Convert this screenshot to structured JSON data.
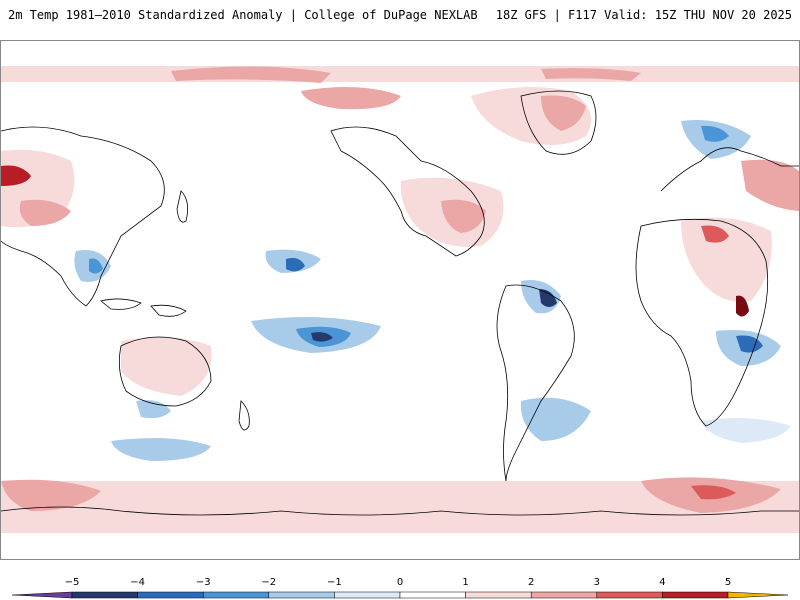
{
  "header": {
    "title_left": "2m Temp 1981–2010 Standardized Anomaly | College of DuPage NEXLAB",
    "title_right": "18Z GFS | F117 Valid: 15Z THU NOV 20 2025"
  },
  "map": {
    "projection": "equirectangular",
    "central_longitude": 180,
    "field": "2m temperature standardized anomaly"
  },
  "colorbar": {
    "tick_labels": [
      "−5",
      "−4",
      "−3",
      "−2",
      "−1",
      "0",
      "1",
      "2",
      "3",
      "4",
      "5"
    ],
    "range": [
      -5.5,
      5.5
    ],
    "segments": [
      {
        "from": -5.5,
        "to": -5,
        "color": "#6a3d9a"
      },
      {
        "from": -5,
        "to": -4,
        "color": "#243a6b"
      },
      {
        "from": -4,
        "to": -3,
        "color": "#2b6cb8"
      },
      {
        "from": -3,
        "to": -2,
        "color": "#4a95d6"
      },
      {
        "from": -2,
        "to": -1,
        "color": "#a9cbea"
      },
      {
        "from": -1,
        "to": 0,
        "color": "#dde9f6"
      },
      {
        "from": 0,
        "to": 1,
        "color": "#ffffff"
      },
      {
        "from": 1,
        "to": 2,
        "color": "#f7dada"
      },
      {
        "from": 2,
        "to": 3,
        "color": "#eba6a6"
      },
      {
        "from": 3,
        "to": 4,
        "color": "#dd5a5a"
      },
      {
        "from": 4,
        "to": 5,
        "color": "#b81d26"
      },
      {
        "from": 5,
        "to": 5.5,
        "color": "#7a0a12"
      }
    ],
    "arrow_low_color": "#6a3d9a",
    "arrow_high_color": "#f5b400"
  },
  "colors": {
    "coastline": "#000000",
    "borders": "#333333",
    "frame": "#888888"
  }
}
